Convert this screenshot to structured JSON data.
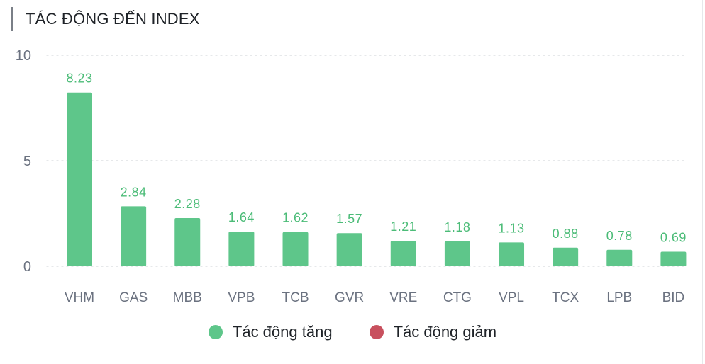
{
  "header": {
    "title": "TÁC ĐỘNG ĐẾN INDEX"
  },
  "colors": {
    "up": "#5ec68a",
    "down": "#c8505e",
    "grid": "#d6d9dd",
    "axis_text": "#6b7280",
    "label_up": "#4cbc78"
  },
  "legend": {
    "items": [
      {
        "label": "Tác động tăng",
        "color": "#5ec68a"
      },
      {
        "label": "Tác động giảm",
        "color": "#c8505e"
      }
    ]
  },
  "chart_data": {
    "type": "bar",
    "title": "TÁC ĐỘNG ĐẾN INDEX",
    "categories": [
      "VHM",
      "GAS",
      "MBB",
      "VPB",
      "TCB",
      "GVR",
      "VRE",
      "CTG",
      "VPL",
      "TCX",
      "LPB",
      "BID"
    ],
    "series": [
      {
        "name": "Tác động tăng",
        "values": [
          8.23,
          2.84,
          2.28,
          1.64,
          1.62,
          1.57,
          1.21,
          1.18,
          1.13,
          0.88,
          0.78,
          0.69
        ]
      }
    ],
    "data_labels": [
      "8.23",
      "2.84",
      "2.28",
      "1.64",
      "1.62",
      "1.57",
      "1.21",
      "1.18",
      "1.13",
      "0.88",
      "0.78",
      "0.69"
    ],
    "yticks": [
      "0",
      "5",
      "10"
    ],
    "ylim": [
      0,
      10
    ],
    "grid": true,
    "legend_position": "bottom"
  }
}
